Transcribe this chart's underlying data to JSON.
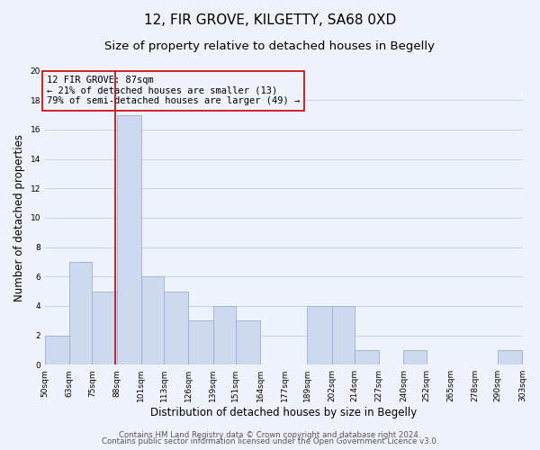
{
  "title": "12, FIR GROVE, KILGETTY, SA68 0XD",
  "subtitle": "Size of property relative to detached houses in Begelly",
  "xlabel": "Distribution of detached houses by size in Begelly",
  "ylabel": "Number of detached properties",
  "bar_color": "#ccd9ef",
  "bar_edge_color": "#9ab0d0",
  "vline_x": 87,
  "vline_color": "#cc0000",
  "annotation_text": "12 FIR GROVE: 87sqm\n← 21% of detached houses are smaller (13)\n79% of semi-detached houses are larger (49) →",
  "annotation_box_edge": "#cc0000",
  "annotation_fontsize": 7.5,
  "bin_edges": [
    50,
    63,
    75,
    88,
    101,
    113,
    126,
    139,
    151,
    164,
    177,
    189,
    202,
    214,
    227,
    240,
    252,
    265,
    278,
    290,
    303
  ],
  "bar_heights": [
    2,
    7,
    5,
    17,
    6,
    5,
    3,
    4,
    3,
    0,
    0,
    4,
    4,
    1,
    0,
    1,
    0,
    0,
    0,
    1
  ],
  "tick_labels": [
    "50sqm",
    "63sqm",
    "75sqm",
    "88sqm",
    "101sqm",
    "113sqm",
    "126sqm",
    "139sqm",
    "151sqm",
    "164sqm",
    "177sqm",
    "189sqm",
    "202sqm",
    "214sqm",
    "227sqm",
    "240sqm",
    "252sqm",
    "265sqm",
    "278sqm",
    "290sqm",
    "303sqm"
  ],
  "ylim": [
    0,
    20
  ],
  "yticks": [
    0,
    2,
    4,
    6,
    8,
    10,
    12,
    14,
    16,
    18,
    20
  ],
  "grid_color": "#c8d4e8",
  "footer_line1": "Contains HM Land Registry data © Crown copyright and database right 2024.",
  "footer_line2": "Contains public sector information licensed under the Open Government Licence v3.0.",
  "background_color": "#eef2fa",
  "title_fontsize": 11,
  "subtitle_fontsize": 9.5,
  "axis_label_fontsize": 8.5,
  "tick_fontsize": 6.5,
  "footer_fontsize": 6.2
}
